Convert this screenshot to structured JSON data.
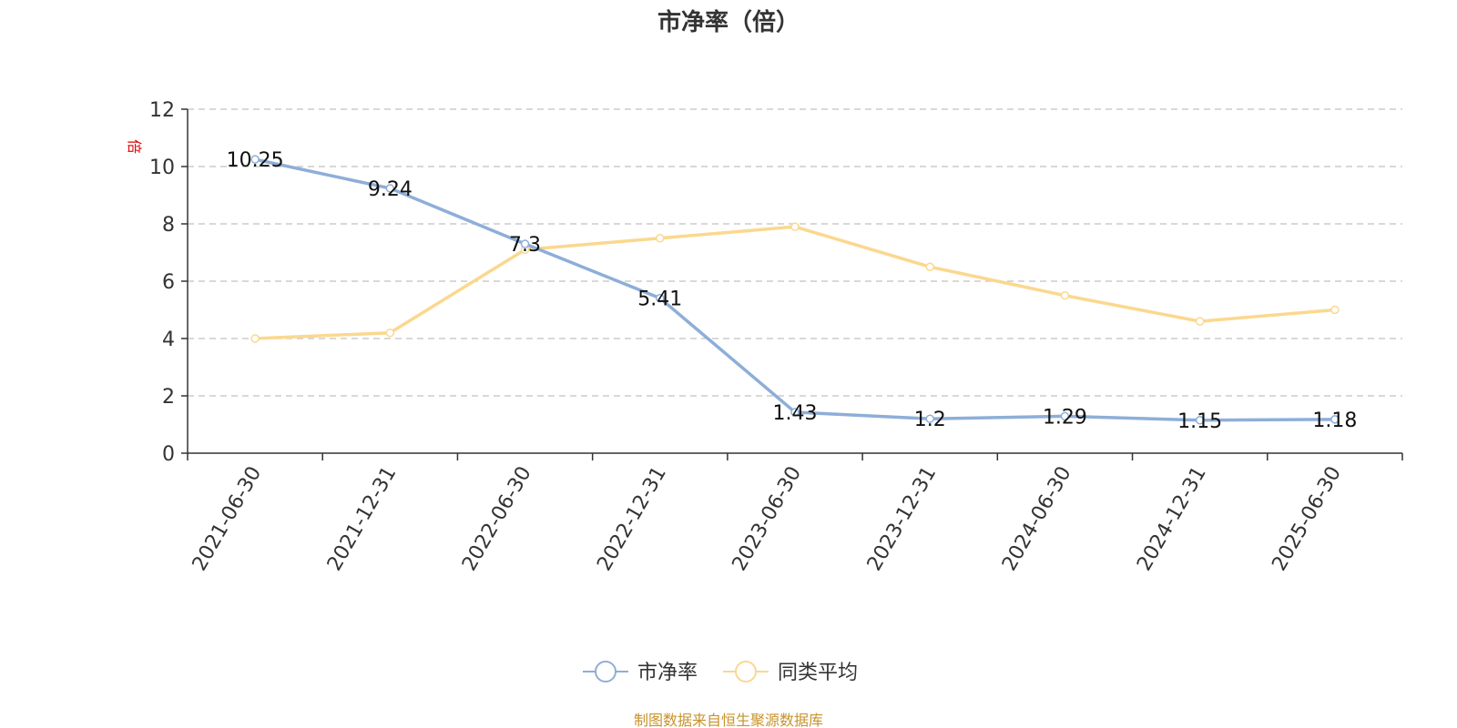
{
  "chart_data": {
    "type": "line",
    "title": "市净率（倍）",
    "ylabel": "倍",
    "ylim": [
      0,
      12
    ],
    "yticks": [
      0,
      2,
      4,
      6,
      8,
      10,
      12
    ],
    "grid": "horizontal dashed",
    "legend_position": "bottom-center",
    "categories": [
      "2021-06-30",
      "2021-12-31",
      "2022-06-30",
      "2022-12-31",
      "2023-06-30",
      "2023-12-31",
      "2024-06-30",
      "2024-12-31",
      "2025-06-30"
    ],
    "series": [
      {
        "name": "市净率",
        "color": "#8eaed8",
        "values": [
          10.25,
          9.24,
          7.3,
          5.41,
          1.43,
          1.2,
          1.29,
          1.15,
          1.18
        ],
        "labels": [
          "10.25",
          "9.24",
          "7.3",
          "5.41",
          "1.43",
          "1.2",
          "1.29",
          "1.15",
          "1.18"
        ]
      },
      {
        "name": "同类平均",
        "color": "#fbd88f",
        "values": [
          4.0,
          4.2,
          7.1,
          7.5,
          7.9,
          6.5,
          5.5,
          4.6,
          5.0
        ]
      }
    ],
    "source": "制图数据来自恒生聚源数据库"
  }
}
